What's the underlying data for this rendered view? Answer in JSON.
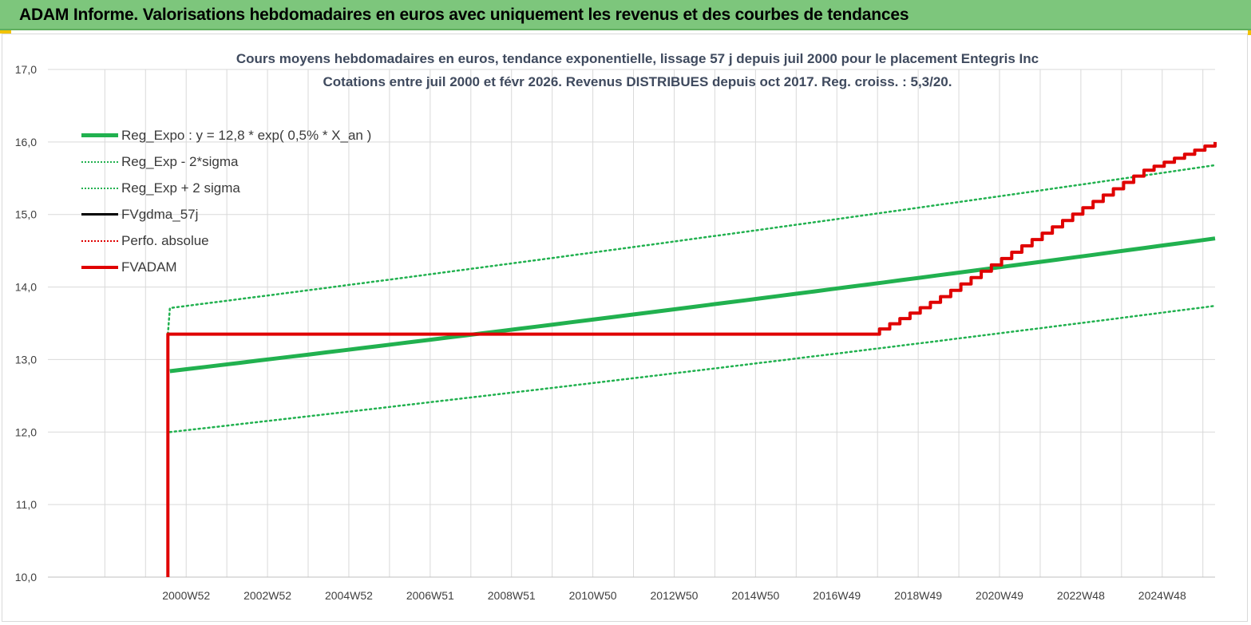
{
  "banner": {
    "title": "ADAM Informe. Valorisations hebdomadaires en euros avec uniquement les revenus et des courbes de tendances"
  },
  "chart_data": {
    "type": "line",
    "title": "Cours moyens hebdomadaires en euros, tendance exponentielle, lissage 57 j depuis juil 2000 pour le placement Entegris Inc",
    "subtitle": "Cotations entre juil 2000 et févr 2026. Revenus DISTRIBUES depuis oct 2017. Reg. croiss. : 5,3/20.",
    "xlabel": "",
    "ylabel": "",
    "ylim": [
      10,
      17
    ],
    "xlim": [
      1997.6,
      2026.3
    ],
    "y_ticks": [
      "10,0",
      "11,0",
      "12,0",
      "13,0",
      "14,0",
      "15,0",
      "16,0",
      "17,0"
    ],
    "x_ticks": [
      {
        "label": "2000W52",
        "x": 2001.0
      },
      {
        "label": "2002W52",
        "x": 2003.0
      },
      {
        "label": "2004W52",
        "x": 2005.0
      },
      {
        "label": "2006W51",
        "x": 2007.0
      },
      {
        "label": "2008W51",
        "x": 2009.0
      },
      {
        "label": "2010W50",
        "x": 2011.0
      },
      {
        "label": "2012W50",
        "x": 2013.0
      },
      {
        "label": "2014W50",
        "x": 2015.0
      },
      {
        "label": "2016W49",
        "x": 2017.0
      },
      {
        "label": "2018W49",
        "x": 2019.0
      },
      {
        "label": "2020W49",
        "x": 2021.0
      },
      {
        "label": "2022W48",
        "x": 2023.0
      },
      {
        "label": "2024W48",
        "x": 2025.0
      }
    ],
    "grid": true,
    "legend_position": "top-left",
    "series": [
      {
        "name": "Reg_Expo : y = 12,8 * exp( 0,5% *  X_an )",
        "color": "#21b14f",
        "style": "solid-thick",
        "x": [
          2000.6,
          2026.3
        ],
        "y": [
          12.84,
          14.67
        ]
      },
      {
        "name": "Reg_Exp - 2*sigma",
        "color": "#21b14f",
        "style": "dotted",
        "x": [
          2000.6,
          2026.3
        ],
        "y": [
          12.0,
          13.74
        ]
      },
      {
        "name": "Reg_Exp + 2 sigma",
        "color": "#21b14f",
        "style": "dotted",
        "x": [
          2000.55,
          2000.6,
          2026.3
        ],
        "y": [
          13.35,
          13.71,
          15.68
        ]
      },
      {
        "name": "FVgdma_57j",
        "color": "#000000",
        "style": "solid",
        "x": [],
        "y": []
      },
      {
        "name": "Perfo. absolue",
        "color": "#e00000",
        "style": "dotted",
        "x": [],
        "y": []
      },
      {
        "name": "FVADAM",
        "color": "#e00000",
        "style": "solid-thick",
        "x": [
          2000.55,
          2000.55,
          2017.8,
          2018.5,
          2019.5,
          2020.5,
          2021.5,
          2022.5,
          2023.5,
          2024.5,
          2025.5,
          2026.3
        ],
        "y": [
          10.0,
          13.35,
          13.35,
          13.55,
          13.85,
          14.2,
          14.55,
          14.9,
          15.25,
          15.6,
          15.82,
          16.0
        ]
      }
    ]
  },
  "colors": {
    "banner": "#7dc67c",
    "accent": "#f2c200",
    "title": "#3f4a5e",
    "green": "#21b14f",
    "red": "#e00000",
    "grid": "#d9d9d9"
  }
}
